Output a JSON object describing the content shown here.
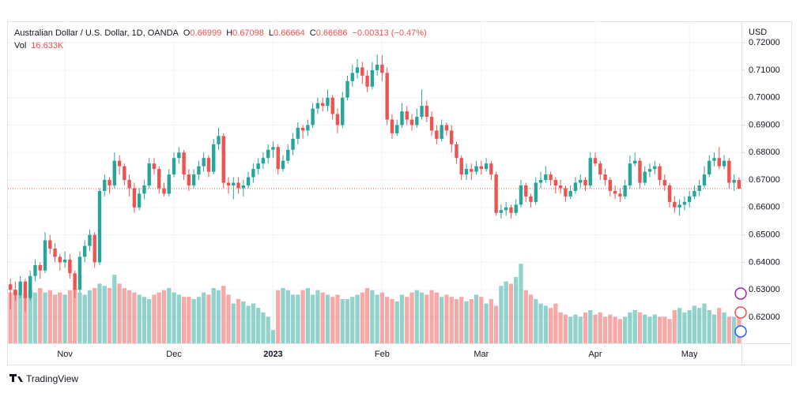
{
  "chart_data": {
    "type": "candlestick",
    "brand": "TradingView",
    "currency": "USD",
    "header": {
      "symbol": "Australian Dollar / U.S. Dollar, 1D, OANDA",
      "ohlc": [
        {
          "label": "O",
          "value": 0.66999
        },
        {
          "label": "H",
          "value": 0.67098
        },
        {
          "label": "L",
          "value": 0.66664
        },
        {
          "label": "C",
          "value": 0.66686
        }
      ],
      "change": "−0.00313 (−0.47%)",
      "volume_label": "Vol",
      "volume_value": "16.633K"
    },
    "up_color": "#26a69a",
    "down_color": "#ef5350",
    "grid": true,
    "ylim": [
      0.6105,
      0.7278
    ],
    "yticks": [
      {
        "value": 0.62,
        "label": "0.62000"
      },
      {
        "value": 0.63,
        "label": "0.63000"
      },
      {
        "value": 0.64,
        "label": "0.64000"
      },
      {
        "value": 0.65,
        "label": "0.65000"
      },
      {
        "value": 0.66,
        "label": "0.66000"
      },
      {
        "value": 0.67,
        "label": "0.67000"
      },
      {
        "value": 0.68,
        "label": "0.68000"
      },
      {
        "value": 0.69,
        "label": "0.69000"
      },
      {
        "value": 0.7,
        "label": "0.70000"
      },
      {
        "value": 0.71,
        "label": "0.71000"
      },
      {
        "value": 0.72,
        "label": "0.72000"
      }
    ],
    "volume_lim": [
      0,
      50
    ],
    "categories": [
      null,
      null,
      null,
      null,
      null,
      null,
      null,
      null,
      null,
      null,
      null,
      "Nov",
      null,
      null,
      null,
      null,
      null,
      null,
      null,
      null,
      null,
      null,
      null,
      null,
      null,
      null,
      null,
      null,
      null,
      null,
      null,
      null,
      null,
      "Dec",
      null,
      null,
      null,
      null,
      null,
      null,
      null,
      null,
      null,
      null,
      null,
      null,
      null,
      null,
      null,
      null,
      null,
      null,
      null,
      "2023",
      null,
      null,
      null,
      null,
      null,
      null,
      null,
      null,
      null,
      null,
      null,
      null,
      null,
      null,
      null,
      null,
      null,
      null,
      null,
      null,
      null,
      "Feb",
      null,
      null,
      null,
      null,
      null,
      null,
      null,
      null,
      null,
      null,
      null,
      null,
      null,
      null,
      null,
      null,
      null,
      null,
      null,
      "Mar",
      null,
      null,
      null,
      null,
      null,
      null,
      null,
      null,
      null,
      null,
      null,
      null,
      null,
      null,
      null,
      null,
      null,
      null,
      null,
      null,
      null,
      null,
      "Apr",
      null,
      null,
      null,
      null,
      null,
      null,
      null,
      null,
      null,
      null,
      null,
      null,
      null,
      null,
      null,
      null,
      null,
      null,
      "May",
      null,
      null,
      null,
      null,
      null,
      null,
      null,
      null,
      null,
      null
    ],
    "candles": [
      [
        0.632,
        0.634,
        0.623,
        0.63
      ],
      [
        0.63,
        0.633,
        0.626,
        0.628
      ],
      [
        0.628,
        0.635,
        0.627,
        0.633
      ],
      [
        0.633,
        0.634,
        0.622,
        0.627
      ],
      [
        0.627,
        0.637,
        0.626,
        0.635
      ],
      [
        0.635,
        0.641,
        0.633,
        0.639
      ],
      [
        0.639,
        0.64,
        0.634,
        0.637
      ],
      [
        0.637,
        0.651,
        0.636,
        0.648
      ],
      [
        0.648,
        0.65,
        0.643,
        0.645
      ],
      [
        0.645,
        0.647,
        0.64,
        0.642
      ],
      [
        0.642,
        0.643,
        0.637,
        0.64
      ],
      [
        0.64,
        0.644,
        0.638,
        0.641
      ],
      [
        0.641,
        0.643,
        0.634,
        0.636
      ],
      [
        0.636,
        0.637,
        0.627,
        0.63
      ],
      [
        0.63,
        0.644,
        0.629,
        0.642
      ],
      [
        0.642,
        0.648,
        0.64,
        0.646
      ],
      [
        0.646,
        0.652,
        0.644,
        0.65
      ],
      [
        0.65,
        0.651,
        0.638,
        0.64
      ],
      [
        0.64,
        0.667,
        0.639,
        0.666
      ],
      [
        0.666,
        0.672,
        0.664,
        0.67
      ],
      [
        0.67,
        0.671,
        0.665,
        0.668
      ],
      [
        0.668,
        0.68,
        0.667,
        0.677
      ],
      [
        0.677,
        0.679,
        0.672,
        0.675
      ],
      [
        0.675,
        0.676,
        0.668,
        0.67
      ],
      [
        0.67,
        0.672,
        0.664,
        0.667
      ],
      [
        0.667,
        0.669,
        0.658,
        0.66
      ],
      [
        0.66,
        0.667,
        0.659,
        0.665
      ],
      [
        0.665,
        0.67,
        0.663,
        0.668
      ],
      [
        0.668,
        0.678,
        0.667,
        0.676
      ],
      [
        0.676,
        0.678,
        0.672,
        0.674
      ],
      [
        0.674,
        0.675,
        0.665,
        0.667
      ],
      [
        0.667,
        0.669,
        0.664,
        0.665
      ],
      [
        0.665,
        0.674,
        0.664,
        0.672
      ],
      [
        0.672,
        0.68,
        0.671,
        0.678
      ],
      [
        0.678,
        0.682,
        0.676,
        0.68
      ],
      [
        0.68,
        0.681,
        0.67,
        0.672
      ],
      [
        0.672,
        0.674,
        0.666,
        0.668
      ],
      [
        0.668,
        0.674,
        0.667,
        0.672
      ],
      [
        0.672,
        0.677,
        0.67,
        0.675
      ],
      [
        0.675,
        0.68,
        0.673,
        0.678
      ],
      [
        0.678,
        0.679,
        0.671,
        0.673
      ],
      [
        0.673,
        0.685,
        0.672,
        0.683
      ],
      [
        0.683,
        0.689,
        0.681,
        0.686
      ],
      [
        0.686,
        0.687,
        0.667,
        0.669
      ],
      [
        0.669,
        0.671,
        0.665,
        0.668
      ],
      [
        0.668,
        0.671,
        0.663,
        0.669
      ],
      [
        0.669,
        0.671,
        0.665,
        0.667
      ],
      [
        0.667,
        0.67,
        0.664,
        0.668
      ],
      [
        0.668,
        0.673,
        0.667,
        0.671
      ],
      [
        0.671,
        0.676,
        0.669,
        0.674
      ],
      [
        0.674,
        0.678,
        0.672,
        0.676
      ],
      [
        0.676,
        0.68,
        0.674,
        0.678
      ],
      [
        0.678,
        0.683,
        0.676,
        0.681
      ],
      [
        0.681,
        0.684,
        0.678,
        0.682
      ],
      [
        0.682,
        0.683,
        0.672,
        0.674
      ],
      [
        0.674,
        0.679,
        0.673,
        0.677
      ],
      [
        0.677,
        0.683,
        0.676,
        0.681
      ],
      [
        0.681,
        0.687,
        0.679,
        0.685
      ],
      [
        0.685,
        0.691,
        0.683,
        0.689
      ],
      [
        0.689,
        0.69,
        0.685,
        0.688
      ],
      [
        0.688,
        0.692,
        0.686,
        0.69
      ],
      [
        0.69,
        0.698,
        0.689,
        0.696
      ],
      [
        0.696,
        0.7,
        0.694,
        0.698
      ],
      [
        0.698,
        0.7,
        0.695,
        0.697
      ],
      [
        0.697,
        0.703,
        0.695,
        0.7
      ],
      [
        0.7,
        0.701,
        0.692,
        0.694
      ],
      [
        0.694,
        0.696,
        0.687,
        0.69
      ],
      [
        0.69,
        0.702,
        0.689,
        0.7
      ],
      [
        0.7,
        0.708,
        0.699,
        0.706
      ],
      [
        0.706,
        0.712,
        0.704,
        0.709
      ],
      [
        0.709,
        0.714,
        0.707,
        0.711
      ],
      [
        0.711,
        0.713,
        0.705,
        0.708
      ],
      [
        0.708,
        0.71,
        0.702,
        0.704
      ],
      [
        0.704,
        0.713,
        0.703,
        0.71
      ],
      [
        0.71,
        0.7157,
        0.708,
        0.712
      ],
      [
        0.712,
        0.7155,
        0.706,
        0.709
      ],
      [
        0.709,
        0.711,
        0.69,
        0.692
      ],
      [
        0.692,
        0.694,
        0.685,
        0.687
      ],
      [
        0.687,
        0.692,
        0.686,
        0.69
      ],
      [
        0.69,
        0.698,
        0.689,
        0.695
      ],
      [
        0.695,
        0.697,
        0.69,
        0.692
      ],
      [
        0.692,
        0.694,
        0.688,
        0.69
      ],
      [
        0.69,
        0.696,
        0.689,
        0.693
      ],
      [
        0.693,
        0.703,
        0.692,
        0.697
      ],
      [
        0.697,
        0.699,
        0.691,
        0.693
      ],
      [
        0.693,
        0.695,
        0.686,
        0.688
      ],
      [
        0.688,
        0.69,
        0.683,
        0.685
      ],
      [
        0.685,
        0.692,
        0.684,
        0.69
      ],
      [
        0.69,
        0.691,
        0.686,
        0.688
      ],
      [
        0.688,
        0.69,
        0.68,
        0.683
      ],
      [
        0.683,
        0.684,
        0.676,
        0.678
      ],
      [
        0.678,
        0.679,
        0.67,
        0.672
      ],
      [
        0.672,
        0.676,
        0.67,
        0.674
      ],
      [
        0.674,
        0.676,
        0.67,
        0.673
      ],
      [
        0.673,
        0.677,
        0.672,
        0.675
      ],
      [
        0.675,
        0.677,
        0.672,
        0.674
      ],
      [
        0.674,
        0.678,
        0.673,
        0.676
      ],
      [
        0.676,
        0.677,
        0.67,
        0.672
      ],
      [
        0.672,
        0.673,
        0.657,
        0.658
      ],
      [
        0.658,
        0.661,
        0.656,
        0.659
      ],
      [
        0.659,
        0.662,
        0.657,
        0.66
      ],
      [
        0.66,
        0.661,
        0.656,
        0.658
      ],
      [
        0.658,
        0.663,
        0.657,
        0.661
      ],
      [
        0.661,
        0.67,
        0.66,
        0.668
      ],
      [
        0.668,
        0.669,
        0.662,
        0.664
      ],
      [
        0.664,
        0.665,
        0.66,
        0.662
      ],
      [
        0.662,
        0.671,
        0.661,
        0.669
      ],
      [
        0.669,
        0.673,
        0.667,
        0.67
      ],
      [
        0.67,
        0.675,
        0.669,
        0.672
      ],
      [
        0.672,
        0.673,
        0.668,
        0.67
      ],
      [
        0.67,
        0.671,
        0.665,
        0.668
      ],
      [
        0.668,
        0.67,
        0.665,
        0.667
      ],
      [
        0.667,
        0.668,
        0.662,
        0.664
      ],
      [
        0.664,
        0.668,
        0.663,
        0.666
      ],
      [
        0.666,
        0.671,
        0.665,
        0.669
      ],
      [
        0.669,
        0.672,
        0.667,
        0.67
      ],
      [
        0.67,
        0.671,
        0.666,
        0.668
      ],
      [
        0.668,
        0.68,
        0.667,
        0.678
      ],
      [
        0.678,
        0.68,
        0.675,
        0.676
      ],
      [
        0.676,
        0.677,
        0.67,
        0.672
      ],
      [
        0.672,
        0.674,
        0.668,
        0.67
      ],
      [
        0.67,
        0.671,
        0.664,
        0.666
      ],
      [
        0.666,
        0.668,
        0.663,
        0.665
      ],
      [
        0.665,
        0.667,
        0.662,
        0.664
      ],
      [
        0.664,
        0.67,
        0.663,
        0.668
      ],
      [
        0.668,
        0.679,
        0.667,
        0.676
      ],
      [
        0.676,
        0.68,
        0.675,
        0.677
      ],
      [
        0.677,
        0.678,
        0.667,
        0.669
      ],
      [
        0.669,
        0.675,
        0.668,
        0.673
      ],
      [
        0.673,
        0.676,
        0.671,
        0.674
      ],
      [
        0.674,
        0.677,
        0.672,
        0.675
      ],
      [
        0.675,
        0.676,
        0.668,
        0.67
      ],
      [
        0.67,
        0.672,
        0.666,
        0.668
      ],
      [
        0.668,
        0.669,
        0.66,
        0.662
      ],
      [
        0.662,
        0.664,
        0.658,
        0.66
      ],
      [
        0.66,
        0.663,
        0.657,
        0.661
      ],
      [
        0.661,
        0.664,
        0.659,
        0.662
      ],
      [
        0.662,
        0.666,
        0.66,
        0.664
      ],
      [
        0.664,
        0.668,
        0.663,
        0.666
      ],
      [
        0.666,
        0.67,
        0.664,
        0.668
      ],
      [
        0.668,
        0.675,
        0.667,
        0.672
      ],
      [
        0.672,
        0.679,
        0.671,
        0.677
      ],
      [
        0.677,
        0.68,
        0.675,
        0.678
      ],
      [
        0.678,
        0.682,
        0.674,
        0.675
      ],
      [
        0.675,
        0.679,
        0.674,
        0.677
      ],
      [
        0.677,
        0.678,
        0.667,
        0.669
      ],
      [
        0.669,
        0.672,
        0.666,
        0.67
      ],
      [
        0.66999,
        0.67098,
        0.66664,
        0.66686
      ]
    ],
    "volume": [
      23,
      24,
      22,
      23,
      24,
      23,
      25,
      23,
      24,
      22,
      23,
      22,
      24,
      25,
      23,
      22,
      24,
      25,
      27,
      26,
      25,
      31,
      27,
      25,
      24,
      23,
      22,
      21,
      20,
      22,
      23,
      24,
      25,
      23,
      22,
      21,
      21,
      20,
      21,
      23,
      22,
      25,
      24,
      26,
      22,
      18,
      20,
      19,
      17,
      18,
      16,
      14,
      12,
      6,
      24,
      25,
      24,
      22,
      22,
      24,
      25,
      22,
      24,
      23,
      22,
      21,
      22,
      20,
      20,
      21,
      22,
      23,
      25,
      24,
      22,
      23,
      21,
      20,
      19,
      22,
      21,
      23,
      24,
      23,
      22,
      24,
      23,
      21,
      22,
      21,
      20,
      21,
      19,
      20,
      22,
      21,
      18,
      20,
      17,
      26,
      28,
      27,
      30,
      36,
      24,
      22,
      20,
      18,
      17,
      16,
      18,
      14,
      13,
      12,
      13,
      12,
      14,
      15,
      13,
      14,
      12,
      13,
      12,
      11,
      12,
      14,
      15,
      14,
      13,
      12,
      13,
      12,
      12,
      11,
      15,
      16,
      14,
      15,
      17,
      16,
      18,
      15,
      13,
      16,
      14,
      12,
      12,
      16.633
    ]
  }
}
